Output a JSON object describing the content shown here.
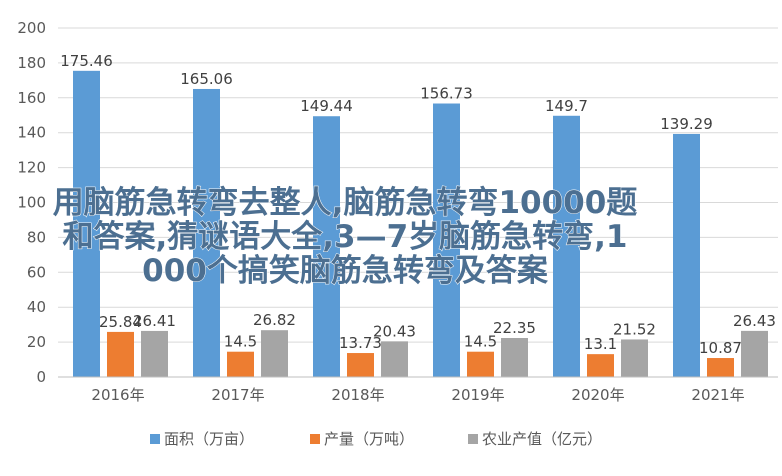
{
  "chart_data": {
    "type": "bar",
    "categories": [
      "2016年",
      "2017年",
      "2018年",
      "2019年",
      "2020年",
      "2021年"
    ],
    "series": [
      {
        "name": "面积（万亩）",
        "color": "#5b9bd5",
        "values": [
          175.46,
          165.06,
          149.44,
          156.73,
          149.7,
          139.29
        ],
        "labels": [
          "175.46",
          "165.06",
          "149.44",
          "156.73",
          "149.7",
          "139.29"
        ]
      },
      {
        "name": "产量（万吨）",
        "color": "#ed7d31",
        "values": [
          25.84,
          14.5,
          13.73,
          14.5,
          13.1,
          10.87
        ],
        "labels": [
          "25.84",
          "14.5",
          "13.73",
          "14.5",
          "13.1",
          "10.87"
        ]
      },
      {
        "name": "农业产值（亿元）",
        "color": "#a5a5a5",
        "values": [
          26.41,
          26.82,
          20.43,
          22.35,
          21.52,
          26.43
        ],
        "labels": [
          "26.41",
          "26.82",
          "20.43",
          "22.35",
          "21.52",
          "26.43"
        ]
      }
    ],
    "ylim": [
      0,
      200
    ],
    "yticks": [
      "0",
      "20",
      "40",
      "60",
      "80",
      "100",
      "120",
      "140",
      "160",
      "180",
      "200"
    ],
    "grid": true,
    "legend": "bottom",
    "title": "",
    "xlabel": "",
    "ylabel": ""
  },
  "overlay": {
    "lines": [
      "用脑筋急转弯去整人,脑筋急转弯10000题",
      "和答案,猜谜语大全,3—7岁脑筋急转弯,1",
      "000个搞笑脑筋急转弯及答案"
    ]
  }
}
